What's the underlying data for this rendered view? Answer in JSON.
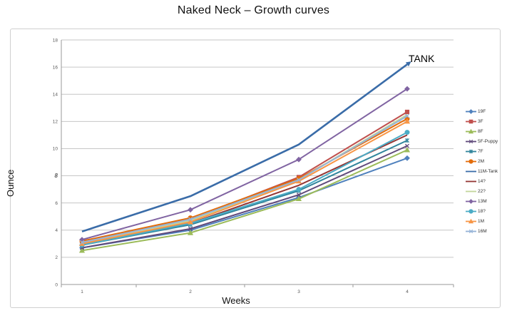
{
  "title": "Naked Neck – Growth curves",
  "annotation": {
    "text": "TANK"
  },
  "axes": {
    "y_title": "Ounce",
    "x_title": "Weeks",
    "y_ticks": [
      "18",
      "16",
      "14",
      "12",
      "10",
      "8",
      "6",
      "4",
      "2",
      "0"
    ],
    "y_bold_tick": "8",
    "x_ticks": [
      "1",
      "2",
      "3",
      "4"
    ]
  },
  "colors": {
    "gridline": "#c6c6c6",
    "axis_line": "#9a9a9a",
    "tick_text": "#595959",
    "frame_border": "#cfcfcf"
  },
  "chart_data": {
    "type": "line",
    "title": "Naked Neck – Growth curves",
    "xlabel": "Weeks",
    "ylabel": "Ounce",
    "x": [
      1,
      2,
      3,
      4
    ],
    "ylim": [
      0,
      18
    ],
    "y_tick_step": 2,
    "grid": true,
    "legend_position": "right",
    "annotations": [
      {
        "text": "TANK",
        "series": "11M-Tank",
        "x": 4,
        "y": 16.8
      }
    ],
    "series": [
      {
        "name": "19F",
        "color": "#4F81BD",
        "marker": "diamond",
        "values": [
          2.7,
          4.0,
          6.4,
          9.3
        ]
      },
      {
        "name": "3F",
        "color": "#C0504D",
        "marker": "square",
        "values": [
          3.2,
          4.8,
          7.9,
          12.7
        ]
      },
      {
        "name": "8F",
        "color": "#9BBB59",
        "marker": "triangle",
        "values": [
          2.5,
          3.8,
          6.3,
          9.9
        ]
      },
      {
        "name": "5F-Puppy",
        "color": "#604A7B",
        "marker": "x",
        "values": [
          2.7,
          4.1,
          6.6,
          10.2
        ]
      },
      {
        "name": "7F",
        "color": "#31859C",
        "marker": "asterisk",
        "values": [
          2.9,
          4.4,
          6.9,
          10.6
        ]
      },
      {
        "name": "2M",
        "color": "#E36C0A",
        "marker": "circle",
        "values": [
          3.2,
          4.9,
          7.8,
          12.2
        ]
      },
      {
        "name": "11M-Tank",
        "color": "#3A6CA8",
        "marker": "none",
        "arrow": true,
        "width": 2.6,
        "values": [
          3.9,
          6.5,
          10.3,
          16.2
        ]
      },
      {
        "name": "14?",
        "color": "#943634",
        "marker": "none",
        "values": [
          3.0,
          4.5,
          7.3,
          11.0
        ]
      },
      {
        "name": "22?",
        "color": "#C3D69B",
        "marker": "none",
        "values": [
          3.1,
          4.7,
          7.7,
          12.5
        ]
      },
      {
        "name": "13M",
        "color": "#8064A2",
        "marker": "diamond",
        "values": [
          3.3,
          5.5,
          9.2,
          14.4
        ]
      },
      {
        "name": "18?",
        "color": "#4BACC6",
        "marker": "circle",
        "values": [
          2.9,
          4.5,
          7.0,
          11.2
        ]
      },
      {
        "name": "1M",
        "color": "#F79646",
        "marker": "triangle",
        "values": [
          3.0,
          4.6,
          7.6,
          12.0
        ]
      },
      {
        "name": "16M",
        "color": "#95B3D7",
        "marker": "x",
        "values": [
          3.1,
          4.8,
          7.7,
          12.4
        ]
      }
    ]
  }
}
